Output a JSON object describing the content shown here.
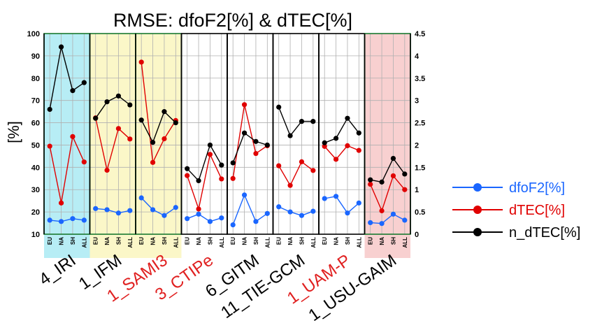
{
  "chart_data": {
    "type": "line",
    "title": "RMSE: dfoF2[%] & dTEC[%]",
    "ylabel": "[%]",
    "ylim": [
      10,
      100
    ],
    "y_ticks": [
      "10",
      "20",
      "30",
      "40",
      "50",
      "60",
      "70",
      "80",
      "90",
      "100"
    ],
    "y2lim": [
      0,
      4.5
    ],
    "y2_ticks": [
      "0",
      "0.5",
      "1",
      "1.5",
      "2",
      "2.5",
      "3",
      "3.5",
      "4",
      "4.5"
    ],
    "categories": [
      "EU",
      "NA",
      "SH",
      "ALL"
    ],
    "models": [
      {
        "name": "4_IRI",
        "color": "#000000",
        "bg": "#b7edf5"
      },
      {
        "name": "1_IFM",
        "color": "#000000",
        "bg": "#fbf7c8"
      },
      {
        "name": "1_SAMI3",
        "color": "#e02020",
        "bg": "#fbf7c8"
      },
      {
        "name": "3_CTIPe",
        "color": "#e02020",
        "bg": "#ffffff"
      },
      {
        "name": "6_GITM",
        "color": "#000000",
        "bg": "#ffffff"
      },
      {
        "name": "11_TIE-GCM",
        "color": "#000000",
        "bg": "#ffffff"
      },
      {
        "name": "1_UAM-P",
        "color": "#e02020",
        "bg": "#ffffff"
      },
      {
        "name": "1_USU-GAIM",
        "color": "#000000",
        "bg": "#f8d0d0"
      }
    ],
    "series": [
      {
        "name": "dfoF2[%]",
        "axis": "left",
        "color": "#1a66ff",
        "values": [
          [
            16.3,
            15.7,
            17.0,
            16.3
          ],
          [
            21.5,
            21.0,
            19.5,
            20.6
          ],
          [
            26.3,
            21.0,
            18.4,
            22.0
          ],
          [
            17.0,
            19.0,
            15.7,
            17.3
          ],
          [
            14.2,
            27.6,
            15.7,
            19.3
          ],
          [
            22.3,
            20.0,
            18.4,
            20.3
          ],
          [
            26.0,
            27.0,
            19.5,
            24.0
          ],
          [
            15.2,
            14.8,
            19.0,
            16.3
          ]
        ]
      },
      {
        "name": "dTEC[%]",
        "axis": "left",
        "color": "#e00000",
        "values": [
          [
            49.5,
            24.0,
            53.8,
            42.4
          ],
          [
            62.2,
            38.7,
            57.4,
            52.7
          ],
          [
            87.2,
            42.2,
            52.8,
            61.0
          ],
          [
            36.3,
            21.3,
            45.8,
            34.8
          ],
          [
            35.0,
            68.1,
            46.2,
            49.7
          ],
          [
            40.7,
            31.9,
            42.5,
            38.6
          ],
          [
            49.4,
            43.6,
            49.7,
            47.6
          ],
          [
            32.4,
            20.5,
            36.2,
            30.0
          ]
        ]
      },
      {
        "name": "n_dTEC[%]",
        "axis": "right",
        "color": "#000000",
        "values": [
          [
            2.8,
            4.2,
            3.22,
            3.4
          ],
          [
            2.6,
            2.97,
            3.1,
            2.9
          ],
          [
            2.56,
            2.06,
            2.75,
            2.5
          ],
          [
            1.47,
            1.2,
            2.0,
            1.55
          ],
          [
            1.6,
            2.27,
            2.08,
            2.0
          ],
          [
            2.85,
            2.21,
            2.53,
            2.53
          ],
          [
            2.05,
            2.15,
            2.6,
            2.27
          ],
          [
            1.22,
            1.17,
            1.7,
            1.35
          ]
        ]
      }
    ],
    "legend_position": "right"
  }
}
